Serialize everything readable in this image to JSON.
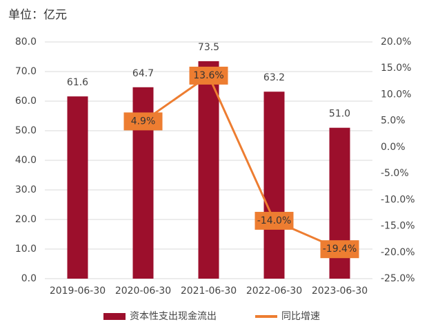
{
  "chart_data": {
    "type": "bar_line",
    "unit_label": "单位：亿元",
    "categories": [
      "2019-06-30",
      "2020-06-30",
      "2021-06-30",
      "2022-06-30",
      "2023-06-30"
    ],
    "series": [
      {
        "name": "资本性支出现金流出",
        "color": "#9c0f2c",
        "type": "bar",
        "values": [
          61.6,
          64.7,
          73.5,
          63.2,
          51.0
        ],
        "value_labels": [
          "61.6",
          "64.7",
          "73.5",
          "63.2",
          "51.0"
        ]
      },
      {
        "name": "同比增速",
        "color": "#ed7d31",
        "type": "line",
        "axis": "y2",
        "values": [
          null,
          4.9,
          13.6,
          -14.0,
          -19.4
        ],
        "value_labels": [
          null,
          "4.9%",
          "13.6%",
          "-14.0%",
          "-19.4%"
        ]
      }
    ],
    "ylim": [
      0,
      80
    ],
    "yticks": [
      {
        "value": 0,
        "label": "0.0"
      },
      {
        "value": 10,
        "label": "10.0"
      },
      {
        "value": 20,
        "label": "20.0"
      },
      {
        "value": 30,
        "label": "30.0"
      },
      {
        "value": 40,
        "label": "40.0"
      },
      {
        "value": 50,
        "label": "50.0"
      },
      {
        "value": 60,
        "label": "60.0"
      },
      {
        "value": 70,
        "label": "70.0"
      },
      {
        "value": 80,
        "label": "80.0"
      }
    ],
    "y2lim": [
      -25,
      20
    ],
    "y2ticks": [
      {
        "value": -25,
        "label": "-25.0%"
      },
      {
        "value": -20,
        "label": "-20.0%"
      },
      {
        "value": -15,
        "label": "-15.0%"
      },
      {
        "value": -10,
        "label": "-10.0%"
      },
      {
        "value": -5,
        "label": "-5.0%"
      },
      {
        "value": 0,
        "label": "0.0%"
      },
      {
        "value": 5,
        "label": "5.0%"
      },
      {
        "value": 10,
        "label": "10.0%"
      },
      {
        "value": 15,
        "label": "15.0%"
      },
      {
        "value": 20,
        "label": "20.0%"
      }
    ],
    "grid": true,
    "legend": "bottom"
  }
}
